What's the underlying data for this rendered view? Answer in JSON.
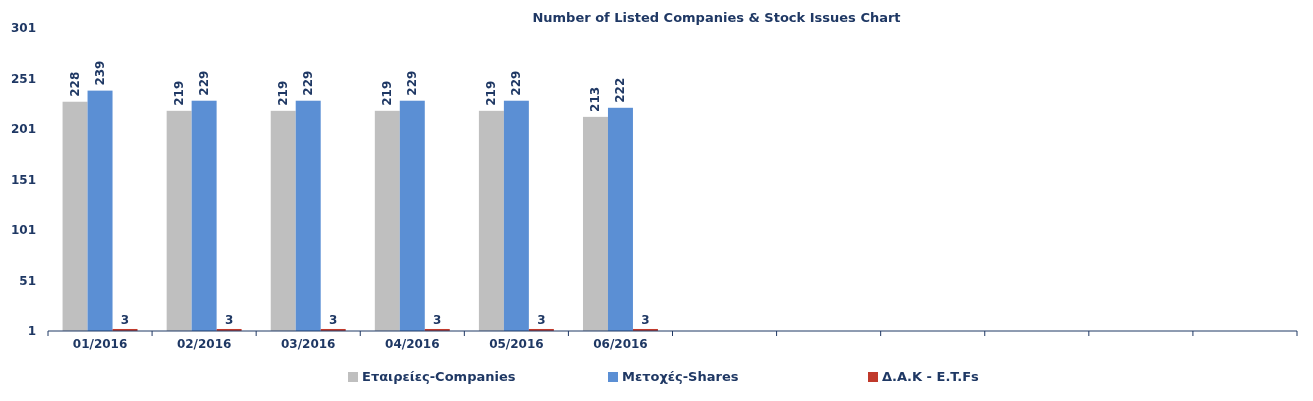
{
  "chart_data": {
    "type": "bar",
    "title": "Number of Listed Companies & Stock Issues Chart",
    "categories": [
      "01/2016",
      "02/2016",
      "03/2016",
      "04/2016",
      "05/2016",
      "06/2016",
      null,
      null,
      null,
      null,
      null,
      null
    ],
    "series": [
      {
        "name": "Εταιρείες-Companies",
        "color": "#bfbfbf",
        "values": [
          228,
          219,
          219,
          219,
          219,
          213,
          null,
          null,
          null,
          null,
          null,
          null
        ]
      },
      {
        "name": "Μετοχές-Shares",
        "color": "#5b8fd4",
        "values": [
          239,
          229,
          229,
          229,
          229,
          222,
          null,
          null,
          null,
          null,
          null,
          null
        ]
      },
      {
        "name": "Δ.Α.Κ - E.T.Fs",
        "color": "#c0392b",
        "values": [
          3,
          3,
          3,
          3,
          3,
          3,
          null,
          null,
          null,
          null,
          null,
          null
        ]
      }
    ],
    "ylim": [
      1,
      301
    ],
    "yticks": [
      1,
      51,
      101,
      151,
      201,
      251,
      301
    ],
    "data_labels": true,
    "grid": false,
    "legend": "bottom"
  }
}
